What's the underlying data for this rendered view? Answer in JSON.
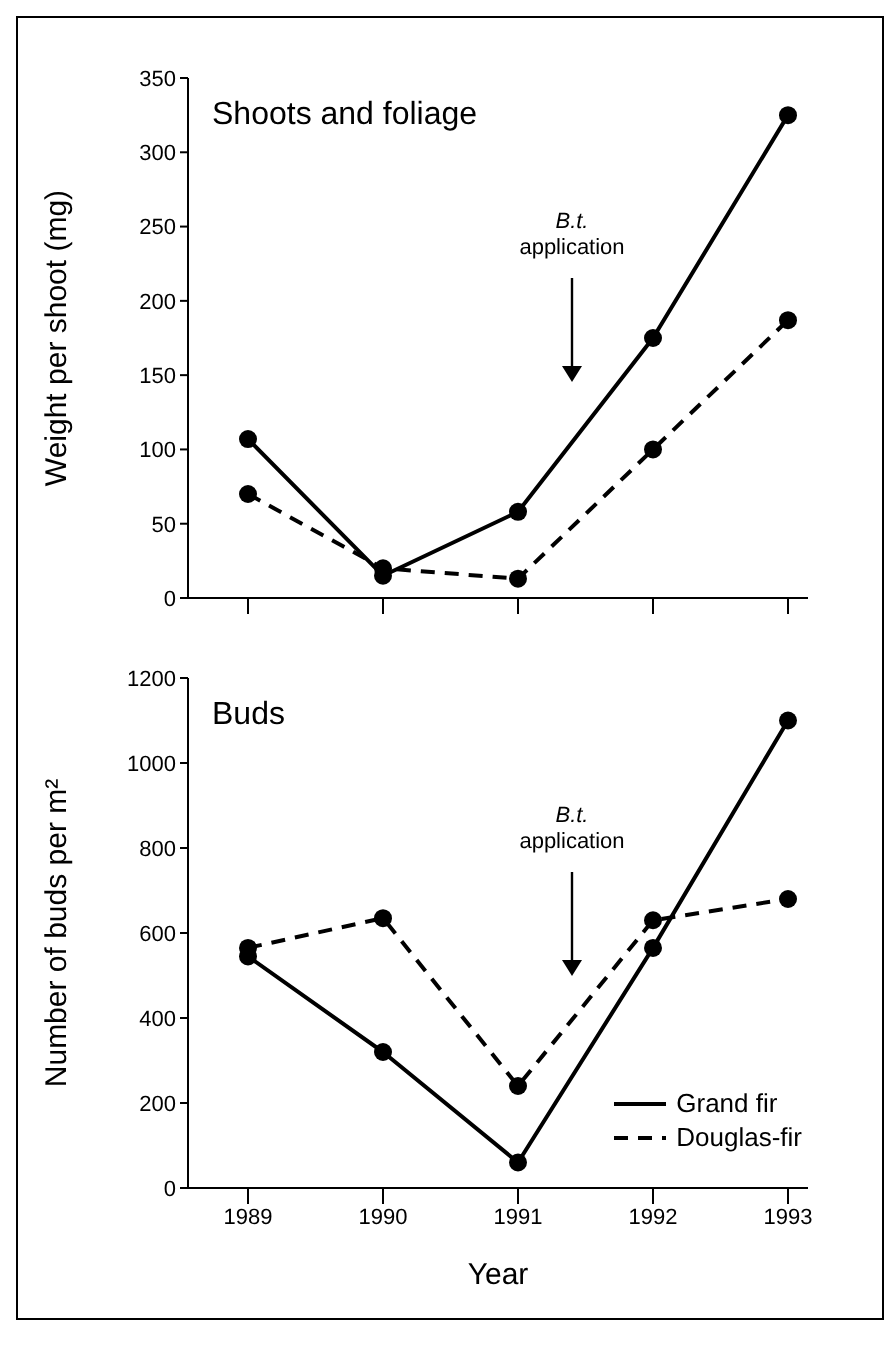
{
  "chart_data": [
    {
      "type": "line",
      "title": "Shoots and foliage",
      "ylabel": "Weight per shoot (mg)",
      "categories": [
        "1989",
        "1990",
        "1991",
        "1992",
        "1993"
      ],
      "series": [
        {
          "color": "#000000",
          "values": [
            107,
            15,
            58,
            175,
            325
          ],
          "line_style": "solid"
        },
        {
          "color": "#000000",
          "values": [
            70,
            20,
            13,
            100,
            187
          ],
          "line_style": "dashed"
        }
      ],
      "ylim": [
        0,
        350
      ],
      "yticks": [
        0,
        50,
        100,
        150,
        200,
        250,
        300,
        350
      ],
      "tick_labels": "y",
      "grid": false,
      "legend": false,
      "marker": "circle",
      "annotations": [
        "B.t. application"
      ]
    },
    {
      "type": "line",
      "title": "Buds",
      "xlabel": "Year",
      "ylabel": "Number of buds per m²",
      "categories": [
        "1989",
        "1990",
        "1991",
        "1992",
        "1993"
      ],
      "series": [
        {
          "name": "Grand fir",
          "color": "#000000",
          "values": [
            545,
            320,
            60,
            565,
            1100
          ],
          "line_style": "solid"
        },
        {
          "name": "Douglas-fir",
          "color": "#000000",
          "values": [
            565,
            635,
            240,
            630,
            680
          ],
          "line_style": "dashed"
        }
      ],
      "ylim": [
        0,
        1200
      ],
      "yticks": [
        0,
        200,
        400,
        600,
        800,
        1000,
        1200
      ],
      "grid": false,
      "legend": "bottom right",
      "marker": "circle",
      "annotations": [
        "B.t. application"
      ]
    }
  ]
}
